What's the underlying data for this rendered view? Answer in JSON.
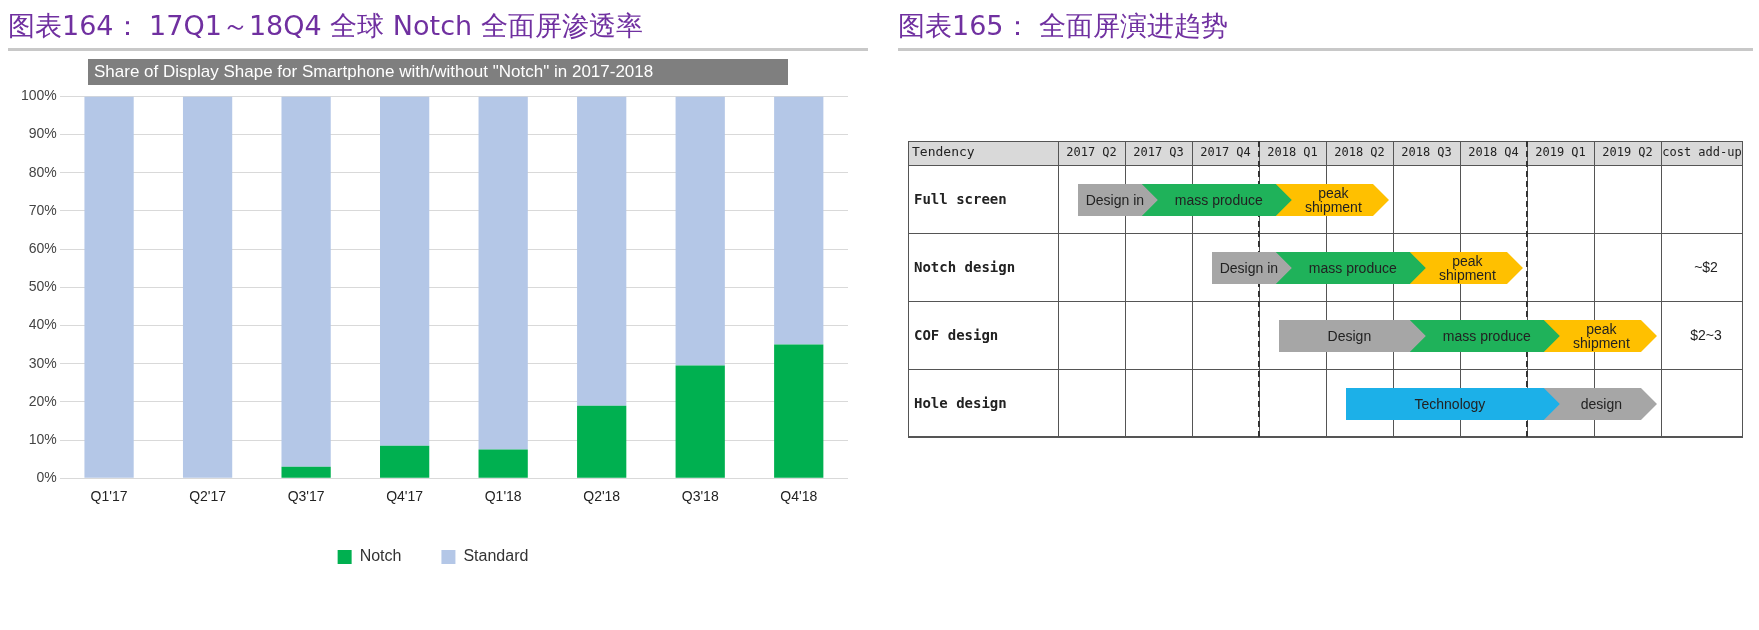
{
  "chart_data": [
    {
      "type": "bar",
      "title": "图表164：  17Q1～18Q4 全球 Notch 全面屏渗透率",
      "subtitle": "Share of Display Shape for Smartphone with/without \"Notch\" in 2017-2018",
      "categories": [
        "Q1'17",
        "Q2'17",
        "Q3'17",
        "Q4'17",
        "Q1'18",
        "Q2'18",
        "Q3'18",
        "Q4'18"
      ],
      "stacked": true,
      "series": [
        {
          "name": "Notch",
          "color": "#00b050",
          "values": [
            0,
            0,
            3,
            8.5,
            7.5,
            19,
            29.5,
            35
          ]
        },
        {
          "name": "Standard",
          "color": "#b4c7e7",
          "values": [
            100,
            100,
            97,
            91.5,
            92.5,
            81,
            70.5,
            65
          ]
        }
      ],
      "ylim": [
        0,
        100
      ],
      "yticks": [
        {
          "value": 0,
          "label": "0%"
        },
        {
          "value": 10,
          "label": "10%"
        },
        {
          "value": 20,
          "label": "20%"
        },
        {
          "value": 30,
          "label": "30%"
        },
        {
          "value": 40,
          "label": "40%"
        },
        {
          "value": 50,
          "label": "50%"
        },
        {
          "value": 60,
          "label": "60%"
        },
        {
          "value": 70,
          "label": "70%"
        },
        {
          "value": 80,
          "label": "80%"
        },
        {
          "value": 90,
          "label": "90%"
        },
        {
          "value": 100,
          "label": "100%"
        }
      ],
      "grid": "y",
      "legend": "bottom"
    },
    {
      "type": "other",
      "title": "图表165：  全面屏演进趋势",
      "ylabel": "Tendency",
      "categories": [
        "2017 Q2",
        "2017 Q3",
        "2017 Q4",
        "2018 Q1",
        "2018 Q2",
        "2018 Q3",
        "2018 Q4",
        "2019 Q1",
        "2019 Q2",
        "cost add-up"
      ],
      "y_categories": [
        "Full screen",
        "Notch design",
        "COF design",
        "Hole design"
      ],
      "cell_labels": [
        [
          "Design in",
          "mass produce",
          null,
          "peak shipment",
          null,
          null,
          null,
          null,
          null,
          null
        ],
        [
          null,
          null,
          "Design in",
          "mass produce",
          null,
          "peak shipment",
          null,
          null,
          null,
          "~$2"
        ],
        [
          null,
          null,
          null,
          "Design",
          null,
          "mass produce",
          null,
          "peak shipment",
          null,
          "$2~3"
        ],
        [
          null,
          null,
          null,
          null,
          "Technology",
          null,
          null,
          "design",
          null,
          null
        ]
      ]
    }
  ]
}
